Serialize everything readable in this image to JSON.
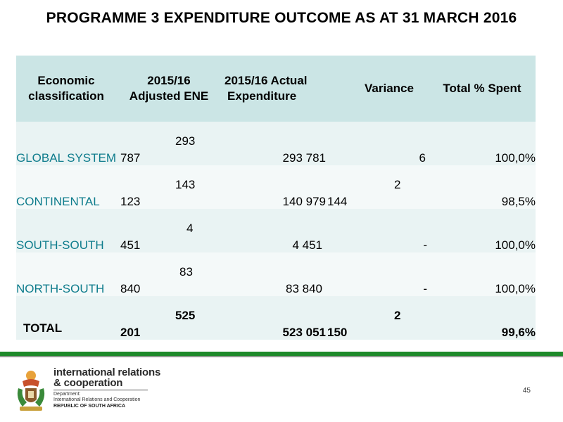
{
  "title": "PROGRAMME 3 EXPENDITURE OUTCOME AS AT 31 MARCH 2016",
  "table": {
    "headers": {
      "classification": [
        "Economic",
        "classification"
      ],
      "adjusted": [
        "2015/16",
        "Adjusted ENE"
      ],
      "actual": [
        "2015/16 Actual",
        "Expenditure"
      ],
      "variance": "Variance",
      "spent": "Total % Spent"
    },
    "rows": [
      {
        "label": "GLOBAL SYSTEM",
        "adj_top": "293",
        "adj_bottom": "787",
        "actual": "293 781",
        "var_top": "",
        "var_bottom": "6",
        "spent": "100,0%"
      },
      {
        "label": "CONTINENTAL",
        "adj_top": "143",
        "adj_bottom": "123",
        "actual": "140 979",
        "var_top": "2",
        "var_bottom": "144",
        "spent": "98,5%"
      },
      {
        "label": "SOUTH-SOUTH",
        "adj_top": "4",
        "adj_bottom": "451",
        "actual": "4 451",
        "var_top": "",
        "var_bottom": "-",
        "spent": "100,0%"
      },
      {
        "label": "NORTH-SOUTH",
        "adj_top": "83",
        "adj_bottom": "840",
        "actual": "83 840",
        "var_top": "",
        "var_bottom": "-",
        "spent": "100,0%"
      }
    ],
    "total": {
      "label": "TOTAL",
      "adj_top": "525",
      "adj_bottom": "201",
      "actual": "523 051",
      "var_top": "2",
      "var_bottom": "150",
      "spent": "99,6%"
    }
  },
  "footer": {
    "org_line1": "international relations",
    "org_line2": "& cooperation",
    "dept_line1": "Department:",
    "dept_line2": "International Relations and Cooperation",
    "country": "REPUBLIC OF SOUTH AFRICA",
    "page_number": "45"
  },
  "colors": {
    "accent_green": "#1e8a2a",
    "label_teal": "#0e7c8c",
    "header_bg": "#cbe5e5"
  }
}
